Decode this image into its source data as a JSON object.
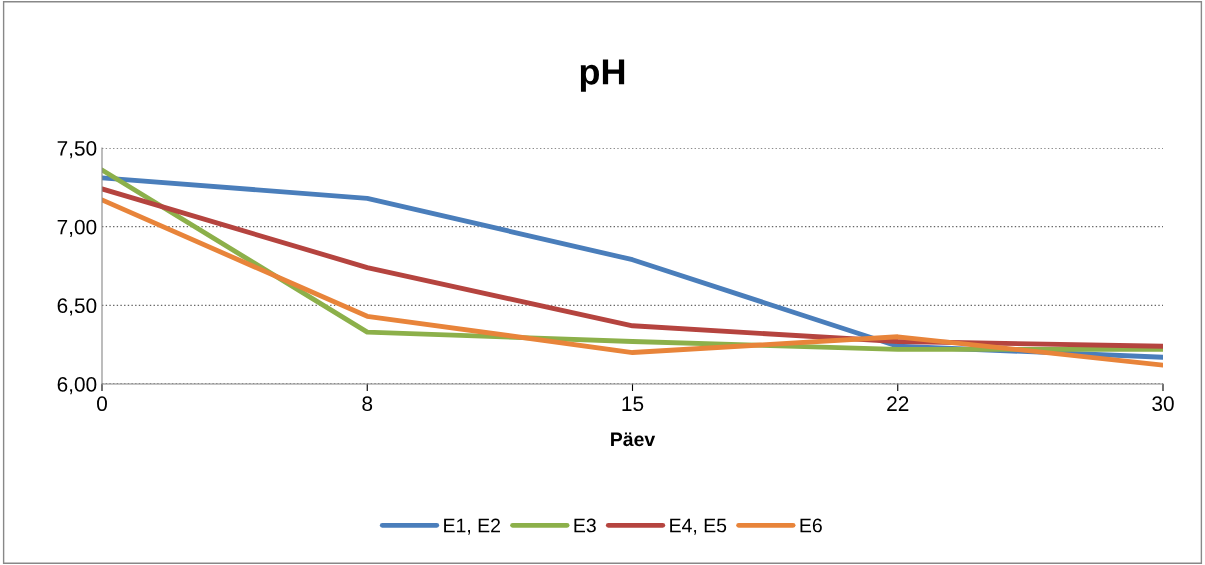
{
  "chart_data": {
    "type": "line",
    "title": "pH",
    "xlabel": "Päev",
    "categories": [
      "0",
      "8",
      "15",
      "22",
      "30"
    ],
    "series": [
      {
        "name": "E1, E2",
        "color": "#4a7ebb",
        "values": [
          7.31,
          7.18,
          6.79,
          6.24,
          6.17
        ]
      },
      {
        "name": "E3",
        "color": "#8cb04a",
        "values": [
          7.36,
          6.33,
          6.27,
          6.22,
          6.22
        ]
      },
      {
        "name": "E4, E5",
        "color": "#b5443f",
        "values": [
          7.24,
          6.74,
          6.37,
          6.27,
          6.24
        ]
      },
      {
        "name": "E6",
        "color": "#e8843a",
        "values": [
          7.17,
          6.43,
          6.2,
          6.3,
          6.12
        ]
      }
    ],
    "ylim": [
      6.0,
      7.5
    ],
    "yticks": [
      {
        "value": 6.0,
        "label": "6,00"
      },
      {
        "value": 6.5,
        "label": "6,50"
      },
      {
        "value": 7.0,
        "label": "7,00"
      },
      {
        "value": 7.5,
        "label": "7,50"
      }
    ],
    "grid": "y",
    "legend": "bottom",
    "marker": "none",
    "line_style": "solid"
  }
}
